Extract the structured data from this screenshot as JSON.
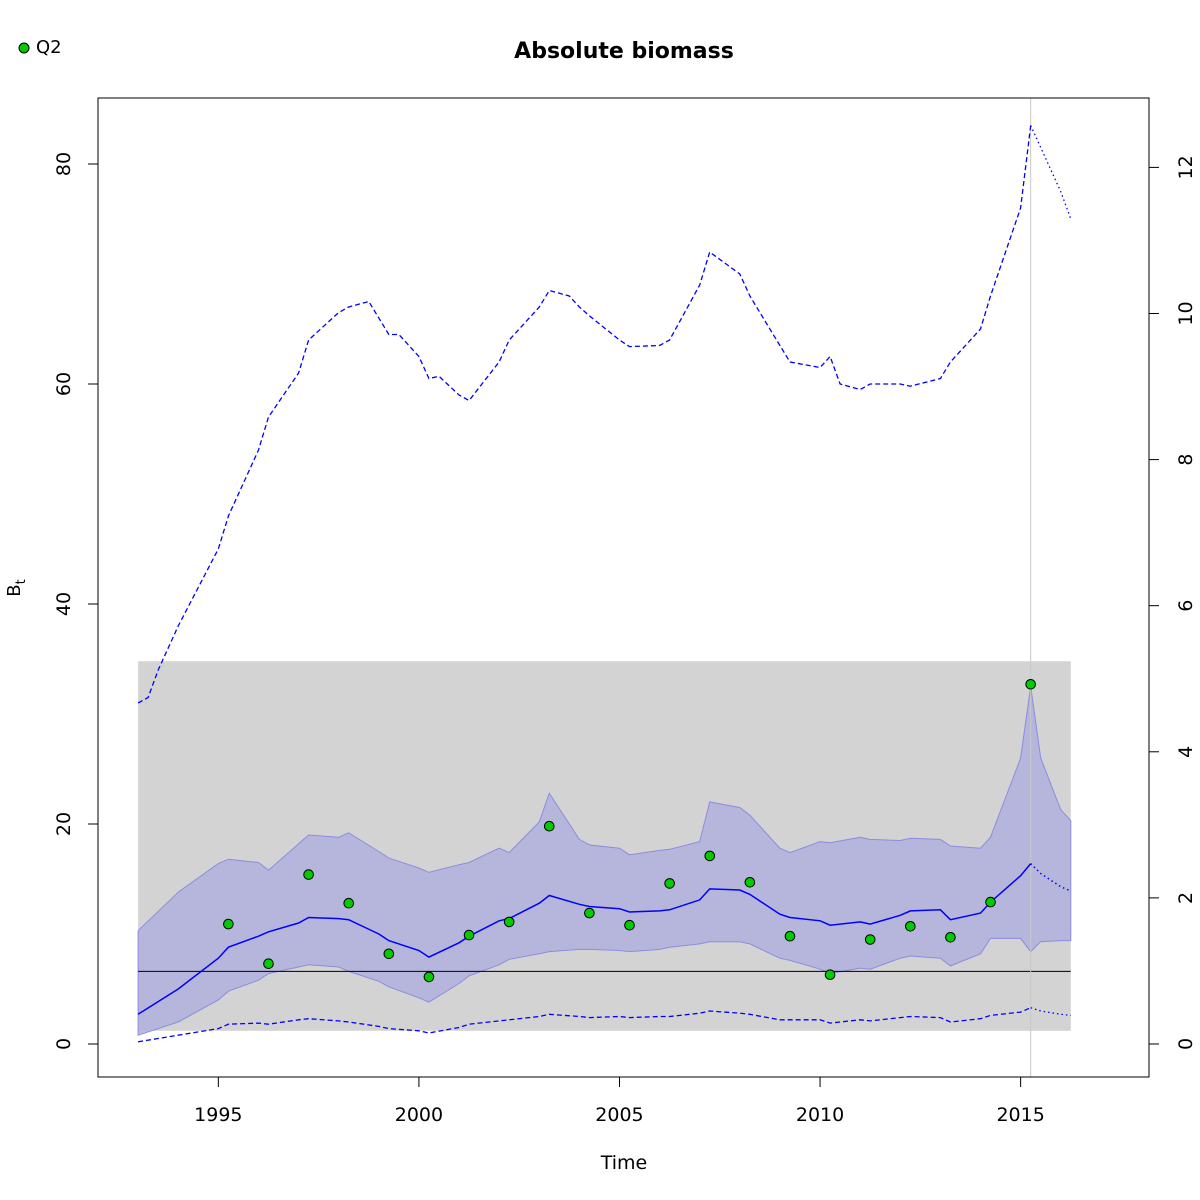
{
  "chart_data": {
    "type": "line",
    "title": "Absolute biomass",
    "xlabel": "Time",
    "ylabel": "B",
    "ylabel_sub": "t",
    "xlim": [
      1992,
      2018.2
    ],
    "ylim": [
      -3,
      86
    ],
    "ylim_right": [
      -0.452,
      12.95
    ],
    "x_ticks": [
      1995,
      2000,
      2005,
      2010,
      2015
    ],
    "y_ticks": [
      0,
      20,
      40,
      60,
      80
    ],
    "y_ticks_right": [
      0,
      2,
      4,
      6,
      8,
      10,
      12
    ],
    "legend": {
      "position": "top-left",
      "entries": [
        {
          "label": "Q2",
          "color": "#00cc00"
        }
      ]
    },
    "colors": {
      "estimate": "#0000ff",
      "band": "#b0b0dd",
      "background_rect": "#d3d3d3",
      "points": "#00cc00",
      "vline": "#c8c8c8"
    },
    "background_rect": {
      "x0": 1993,
      "x1": 2016.25,
      "y0": 1.2,
      "y1": 34.8
    },
    "reference_line_y": 6.6,
    "vertical_line_x": 2015.25,
    "observations_Q2": {
      "x": [
        1995.25,
        1996.25,
        1997.25,
        1998.25,
        1999.25,
        2000.25,
        2001.25,
        2002.25,
        2003.25,
        2004.25,
        2005.25,
        2006.25,
        2007.25,
        2008.25,
        2009.25,
        2010.25,
        2011.25,
        2012.25,
        2013.25,
        2014.25,
        2015.25
      ],
      "y": [
        10.9,
        7.3,
        15.4,
        12.8,
        8.2,
        6.1,
        9.9,
        11.1,
        19.8,
        11.9,
        10.8,
        14.6,
        17.1,
        14.7,
        9.8,
        6.3,
        9.5,
        10.7,
        9.7,
        12.9,
        32.7
      ]
    },
    "biomass_estimate": {
      "x": [
        1993,
        1994,
        1995,
        1995.25,
        1996,
        1996.25,
        1997,
        1997.25,
        1998,
        1998.25,
        1999,
        1999.25,
        2000,
        2000.25,
        2001,
        2001.25,
        2002,
        2002.25,
        2003,
        2003.25,
        2004,
        2004.25,
        2005,
        2005.25,
        2006,
        2006.25,
        2007,
        2007.25,
        2008,
        2008.25,
        2009,
        2009.25,
        2010,
        2010.25,
        2011,
        2011.25,
        2012,
        2012.25,
        2013,
        2013.25,
        2014,
        2014.25,
        2015,
        2015.25
      ],
      "y": [
        2.7,
        5.0,
        7.8,
        8.8,
        9.8,
        10.2,
        11.0,
        11.5,
        11.4,
        11.3,
        10.0,
        9.4,
        8.5,
        7.9,
        9.2,
        9.8,
        11.2,
        11.4,
        12.8,
        13.5,
        12.7,
        12.5,
        12.3,
        12.0,
        12.1,
        12.2,
        13.1,
        14.1,
        14.0,
        13.6,
        11.8,
        11.5,
        11.2,
        10.8,
        11.1,
        10.9,
        11.7,
        12.1,
        12.2,
        11.3,
        11.9,
        12.9,
        15.3,
        16.4
      ]
    },
    "biomass_forecast": {
      "x": [
        2015.25,
        2015.5,
        2016,
        2016.25
      ],
      "y": [
        16.4,
        15.5,
        14.3,
        13.9
      ]
    },
    "ci_upper": {
      "x": [
        1993,
        1994,
        1995,
        1995.25,
        1996,
        1996.25,
        1997,
        1997.25,
        1998,
        1998.25,
        1999,
        1999.25,
        2000,
        2000.25,
        2001,
        2001.25,
        2002,
        2002.25,
        2003,
        2003.25,
        2004,
        2004.25,
        2005,
        2005.25,
        2006,
        2006.25,
        2007,
        2007.25,
        2008,
        2008.25,
        2009,
        2009.25,
        2010,
        2010.25,
        2011,
        2011.25,
        2012,
        2012.25,
        2013,
        2013.25,
        2014,
        2014.25,
        2015,
        2015.25,
        2015.5,
        2016,
        2016.25
      ],
      "y": [
        10.3,
        13.8,
        16.4,
        16.8,
        16.5,
        15.8,
        18.2,
        19.0,
        18.8,
        19.2,
        17.5,
        16.9,
        16.0,
        15.6,
        16.3,
        16.5,
        17.8,
        17.4,
        20.2,
        22.8,
        18.6,
        18.1,
        17.8,
        17.2,
        17.6,
        17.7,
        18.4,
        22.0,
        21.5,
        20.8,
        17.8,
        17.4,
        18.4,
        18.3,
        18.8,
        18.6,
        18.5,
        18.7,
        18.6,
        18.0,
        17.8,
        18.8,
        26.0,
        32.5,
        26.0,
        21.3,
        20.3
      ]
    },
    "ci_lower": {
      "x": [
        1993,
        1994,
        1995,
        1995.25,
        1996,
        1996.25,
        1997,
        1997.25,
        1998,
        1998.25,
        1999,
        1999.25,
        2000,
        2000.25,
        2001,
        2001.25,
        2002,
        2002.25,
        2003,
        2003.25,
        2004,
        2004.25,
        2005,
        2005.25,
        2006,
        2006.25,
        2007,
        2007.25,
        2008,
        2008.25,
        2009,
        2009.25,
        2010,
        2010.25,
        2011,
        2011.25,
        2012,
        2012.25,
        2013,
        2013.25,
        2014,
        2014.25,
        2015,
        2015.25,
        2015.5,
        2016,
        2016.25
      ],
      "y": [
        0.8,
        2.0,
        4.0,
        4.8,
        5.8,
        6.4,
        7.0,
        7.2,
        7.0,
        6.6,
        5.7,
        5.2,
        4.2,
        3.8,
        5.5,
        6.2,
        7.2,
        7.7,
        8.2,
        8.4,
        8.6,
        8.6,
        8.5,
        8.4,
        8.6,
        8.8,
        9.1,
        9.3,
        9.3,
        9.1,
        7.8,
        7.6,
        6.8,
        6.4,
        6.9,
        6.8,
        7.8,
        8.0,
        7.8,
        7.1,
        8.2,
        9.6,
        9.6,
        8.4,
        9.3,
        9.4,
        9.4
      ]
    },
    "upper_dashed": {
      "x": [
        1993,
        1993.25,
        1993.5,
        1994,
        1995,
        1995.25,
        1996,
        1996.25,
        1997,
        1997.25,
        1998,
        1998.25,
        1998.75,
        1999.25,
        1999.5,
        2000,
        2000.25,
        2000.5,
        2001,
        2001.25,
        2002,
        2002.25,
        2003,
        2003.25,
        2003.75,
        2004,
        2004.25,
        2005,
        2005.25,
        2006,
        2006.25,
        2007,
        2007.25,
        2008,
        2008.25,
        2009,
        2009.25,
        2010,
        2010.25,
        2010.5,
        2011,
        2011.25,
        2012,
        2012.25,
        2013,
        2013.25,
        2014,
        2014.25,
        2015,
        2015.25
      ],
      "y": [
        31.0,
        31.5,
        34.0,
        38.0,
        45.0,
        48.0,
        54.0,
        57.0,
        61.0,
        64.0,
        66.5,
        67.0,
        67.5,
        64.5,
        64.5,
        62.5,
        60.5,
        60.7,
        59.0,
        58.5,
        62.0,
        64.0,
        67.0,
        68.5,
        68.0,
        67.0,
        66.2,
        64.0,
        63.4,
        63.5,
        64.0,
        69.0,
        72.0,
        70.0,
        68.0,
        63.5,
        62.0,
        61.5,
        62.5,
        60.0,
        59.5,
        60.0,
        60.0,
        59.8,
        60.5,
        62.0,
        65.0,
        68.0,
        76.0,
        83.5
      ]
    },
    "upper_dotted": {
      "x": [
        2015.25,
        2015.5,
        2016,
        2016.25
      ],
      "y": [
        83.5,
        81.5,
        77.5,
        75.0
      ]
    },
    "lower_dashed": {
      "x": [
        1993,
        1994,
        1995,
        1995.25,
        1996,
        1996.25,
        1997,
        1997.25,
        1998,
        1998.25,
        1999,
        1999.25,
        2000,
        2000.25,
        2001,
        2001.25,
        2002,
        2002.25,
        2003,
        2003.25,
        2004,
        2004.25,
        2005,
        2005.25,
        2006,
        2006.25,
        2007,
        2007.25,
        2008,
        2008.25,
        2009,
        2009.25,
        2010,
        2010.25,
        2011,
        2011.25,
        2012,
        2012.25,
        2013,
        2013.25,
        2014,
        2014.25,
        2015,
        2015.25
      ],
      "y": [
        0.2,
        0.8,
        1.4,
        1.8,
        1.9,
        1.8,
        2.2,
        2.3,
        2.1,
        2.0,
        1.6,
        1.4,
        1.2,
        1.0,
        1.5,
        1.8,
        2.1,
        2.2,
        2.5,
        2.7,
        2.5,
        2.4,
        2.5,
        2.4,
        2.5,
        2.5,
        2.8,
        3.0,
        2.8,
        2.7,
        2.2,
        2.2,
        2.2,
        1.9,
        2.2,
        2.1,
        2.4,
        2.5,
        2.4,
        2.0,
        2.3,
        2.6,
        2.9,
        3.3
      ]
    },
    "lower_dotted": {
      "x": [
        2015.25,
        2015.5,
        2016,
        2016.25
      ],
      "y": [
        3.3,
        3.0,
        2.7,
        2.6
      ]
    }
  }
}
